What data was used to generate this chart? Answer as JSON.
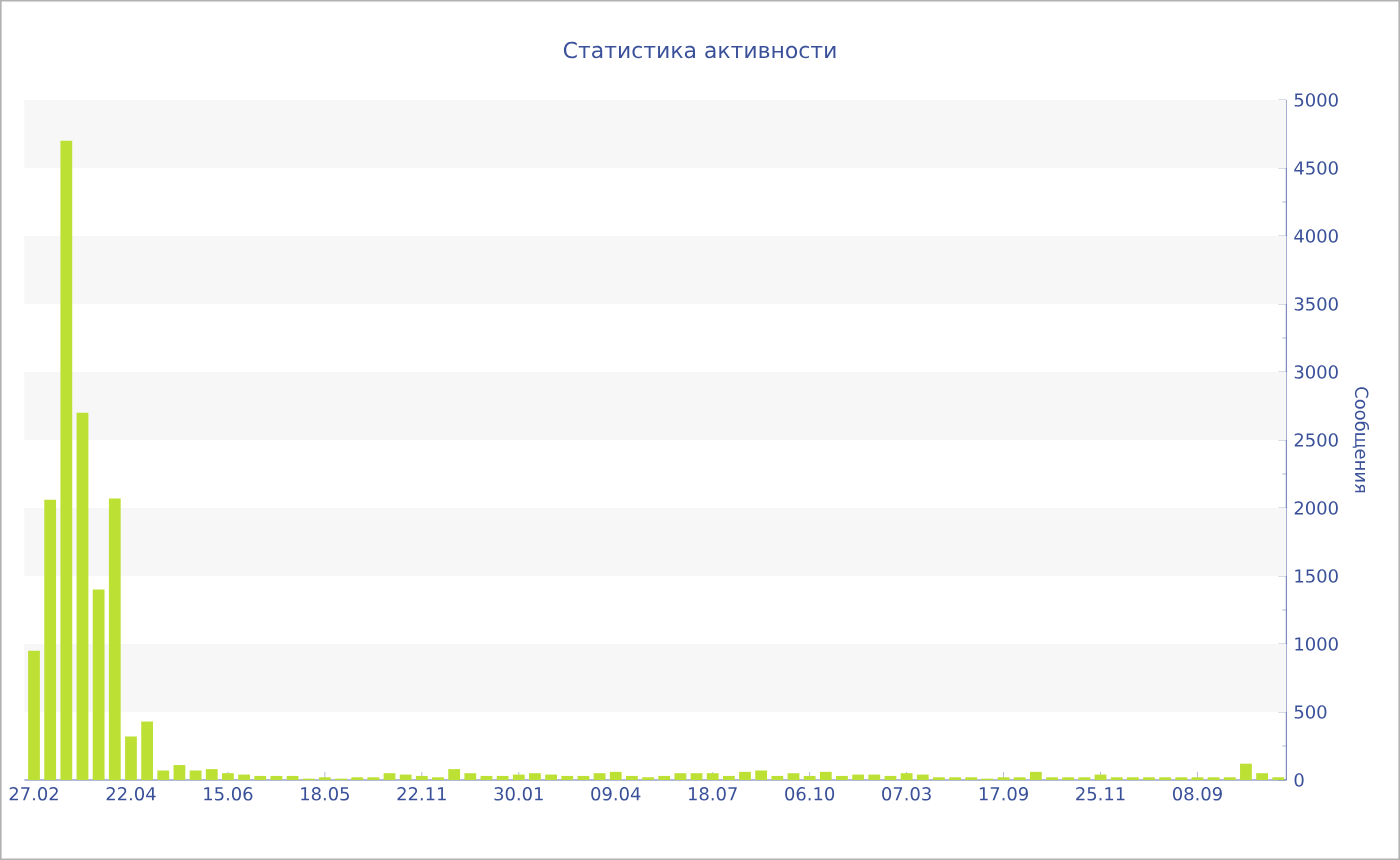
{
  "chart_data": {
    "type": "bar",
    "title": "Статистика активности",
    "ylabel": "Сообщения",
    "categories": [
      "27.02",
      null,
      null,
      null,
      null,
      null,
      "22.04",
      null,
      null,
      null,
      null,
      null,
      "15.06",
      null,
      null,
      null,
      null,
      null,
      "18.05",
      null,
      null,
      null,
      null,
      null,
      "22.11",
      null,
      null,
      null,
      null,
      null,
      "30.01",
      null,
      null,
      null,
      null,
      null,
      "09.04",
      null,
      null,
      null,
      null,
      null,
      "18.07",
      null,
      null,
      null,
      null,
      null,
      "06.10",
      null,
      null,
      null,
      null,
      null,
      "07.03",
      null,
      null,
      null,
      null,
      null,
      "17.09",
      null,
      null,
      null,
      null,
      null,
      "25.11",
      null,
      null,
      null,
      null,
      null,
      "08.09",
      null,
      null,
      null,
      null,
      null
    ],
    "values": [
      950,
      2060,
      4700,
      2700,
      1400,
      2070,
      320,
      430,
      70,
      110,
      70,
      80,
      50,
      40,
      30,
      30,
      30,
      10,
      20,
      10,
      20,
      20,
      50,
      40,
      30,
      20,
      80,
      50,
      30,
      30,
      40,
      50,
      40,
      30,
      30,
      50,
      60,
      30,
      20,
      30,
      50,
      50,
      50,
      30,
      60,
      70,
      30,
      50,
      30,
      60,
      30,
      40,
      40,
      30,
      50,
      40,
      20,
      20,
      20,
      10,
      20,
      20,
      60,
      20,
      20,
      20,
      40,
      20,
      20,
      20,
      20,
      20,
      20,
      20,
      20,
      120,
      50,
      20
    ],
    "color": "#bde035",
    "ylim": [
      0,
      5000
    ],
    "yticks": [
      0,
      500,
      1000,
      1500,
      2000,
      2500,
      3000,
      3500,
      4000,
      4500,
      5000
    ],
    "bands": [
      {
        "axis": "y",
        "from": 500,
        "to": 1000,
        "color": "#f7f7f7"
      },
      {
        "axis": "y",
        "from": 1500,
        "to": 2000,
        "color": "#f7f7f7"
      },
      {
        "axis": "y",
        "from": 2500,
        "to": 3000,
        "color": "#f7f7f7"
      },
      {
        "axis": "y",
        "from": 3500,
        "to": 4000,
        "color": "#f7f7f7"
      },
      {
        "axis": "y",
        "from": 4500,
        "to": 5000,
        "color": "#f7f7f7"
      }
    ]
  }
}
